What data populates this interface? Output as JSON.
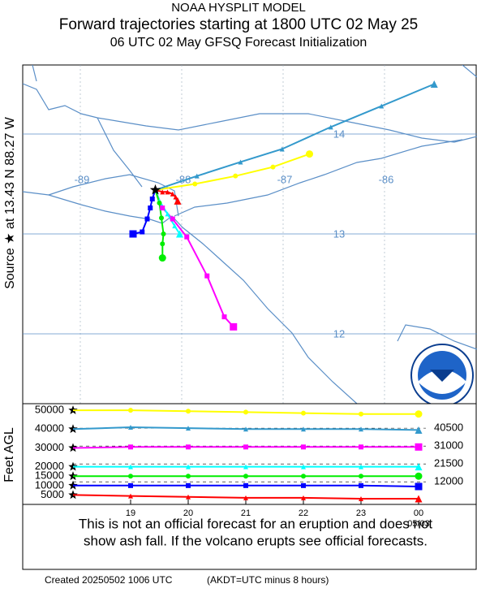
{
  "header": {
    "title": "NOAA HYSPLIT MODEL",
    "subtitle": "Forward trajectories starting at 1800 UTC 02 May 25",
    "run_info": "06 UTC 02 May    GFSQ  Forecast Initialization"
  },
  "map": {
    "source_label": "Source ★ at  13.43 N   88.27 W",
    "lon_ticks": [
      -89,
      -88,
      -87,
      -86
    ],
    "lat_ticks": [
      14,
      13,
      12
    ],
    "trajectories": [
      {
        "lon": [
          -88.26,
          -87.87,
          -87.47,
          -87.1,
          -86.74
        ],
        "lat": [
          13.44,
          13.5,
          13.58,
          13.67,
          13.8
        ]
      },
      {
        "lon": [
          -88.26,
          -87.85,
          -87.42,
          -87.01,
          -86.53,
          -86.03,
          -85.51
        ],
        "lat": [
          13.44,
          13.58,
          13.72,
          13.85,
          14.07,
          14.28,
          14.5
        ]
      },
      {
        "lon": [
          -88.26,
          -88.19,
          -88.09,
          -87.95,
          -87.75,
          -87.58,
          -87.49
        ],
        "lat": [
          13.44,
          13.26,
          13.15,
          12.97,
          12.58,
          12.17,
          12.07
        ]
      },
      {
        "lon": [
          -88.26,
          -88.22,
          -88.14,
          -88.07,
          -88.02
        ],
        "lat": [
          13.44,
          13.33,
          13.2,
          13.08,
          13.0
        ]
      },
      {
        "lon": [
          -88.26,
          -88.22,
          -88.2,
          -88.18,
          -88.19,
          -88.19
        ],
        "lat": [
          13.44,
          13.31,
          13.16,
          13.0,
          12.9,
          12.76
        ]
      },
      {
        "lon": [
          -88.26,
          -88.29,
          -88.31,
          -88.34,
          -88.39,
          -88.48
        ],
        "lat": [
          13.44,
          13.35,
          13.26,
          13.15,
          13.02,
          13.0
        ]
      },
      {
        "lon": [
          -88.26,
          -88.19,
          -88.14,
          -88.09,
          -88.06,
          -88.04
        ],
        "lat": [
          13.44,
          13.42,
          13.42,
          13.4,
          13.37,
          13.33
        ]
      }
    ]
  },
  "chart_data": {
    "type": "line",
    "y_label": "Feet AGL",
    "categories": [
      null,
      "19",
      "20",
      "21",
      "22",
      "23",
      "00"
    ],
    "x_sublabel": "05/03",
    "ylim": [
      0,
      53500
    ],
    "yticks": [
      5000,
      10000,
      15000,
      20000,
      30000,
      40000,
      50000
    ],
    "y2lim": [
      0,
      53500
    ],
    "y2ticks": [
      12000,
      21500,
      31000,
      40500
    ],
    "series": [
      {
        "color": "#ffff00",
        "marker": "circle",
        "values": [
          50000,
          50000,
          49500,
          49000,
          48500,
          48000,
          48000
        ]
      },
      {
        "color": "#3399cc",
        "marker": "triangle",
        "values": [
          40000,
          41000,
          40500,
          40000,
          40000,
          40000,
          39500
        ]
      },
      {
        "color": "#ff00ff",
        "marker": "square",
        "values": [
          30000,
          30500,
          30500,
          30500,
          30500,
          30500,
          30500
        ]
      },
      {
        "color": "#00ffff",
        "marker": "triangle",
        "values": [
          20000,
          20000,
          20000,
          20000,
          20000,
          20000,
          20000
        ]
      },
      {
        "color": "#00ee00",
        "marker": "circle",
        "values": [
          15000,
          15000,
          15000,
          15000,
          15000,
          15000,
          15000
        ]
      },
      {
        "color": "#0000ff",
        "marker": "square",
        "values": [
          10000,
          10000,
          10000,
          10000,
          10000,
          10000,
          9500
        ]
      },
      {
        "color": "#ff0000",
        "marker": "triangle",
        "values": [
          5000,
          4500,
          4000,
          3500,
          3500,
          3000,
          3000
        ]
      }
    ]
  },
  "footer": {
    "disclaimer_line1": "This is not an official forecast for an eruption and does not",
    "disclaimer_line2": "show ash fall. If the volcano erupts see official forecasts.",
    "created": "Created 20250502 1006 UTC",
    "timezone_note": "(AKDT=UTC minus 8 hours)"
  }
}
